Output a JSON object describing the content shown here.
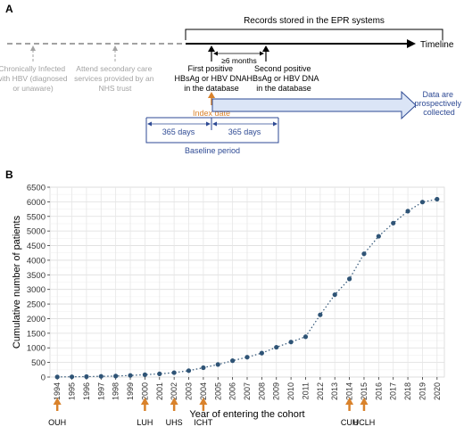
{
  "panel_a": {
    "label": "A",
    "records_label": "Records stored in the EPR systems",
    "timeline_label": "Timeline",
    "gap_label": "≥6 months",
    "chronic_text": [
      "Chronically Infected",
      "with HBV (diagnosed",
      "or unaware)"
    ],
    "attend_text": [
      "Attend secondary care",
      "services provided by an",
      "NHS trust"
    ],
    "first_positive_text": [
      "First positive",
      "HBsAg or HBV DNA",
      "in the database"
    ],
    "second_positive_text": [
      "Second positive",
      "HBsAg or HBV DNA",
      "in the database"
    ],
    "index_date_label": "Index date",
    "prospective_text": [
      "Data are",
      "prospectively",
      "collected"
    ],
    "days_before_label": "365 days",
    "days_after_label": "365 days",
    "baseline_label": "Baseline period",
    "colors": {
      "grey": "#a3a3a3",
      "orange": "#d9822b",
      "blue": "#2e4a94",
      "arrow_fill": "#dbe5f6",
      "black": "#000000"
    }
  },
  "panel_b": {
    "label": "B",
    "trust_marker_color": "#d9822b",
    "trusts": [
      {
        "name": "OUH",
        "year": 1994
      },
      {
        "name": "LUH",
        "year": 2000
      },
      {
        "name": "UHS",
        "year": 2002
      },
      {
        "name": "ICHT",
        "year": 2004
      },
      {
        "name": "CUH",
        "year": 2014
      },
      {
        "name": "UCLH",
        "year": 2015
      }
    ]
  },
  "chart_data": {
    "type": "line",
    "title": "",
    "xlabel": "Year of entering the cohort",
    "ylabel": "Cumulative number of patients",
    "x": [
      1994,
      1995,
      1996,
      1997,
      1998,
      1999,
      2000,
      2001,
      2002,
      2003,
      2004,
      2005,
      2006,
      2007,
      2008,
      2009,
      2010,
      2011,
      2012,
      2013,
      2014,
      2015,
      2016,
      2017,
      2018,
      2019,
      2020
    ],
    "series": [
      {
        "values": [
          5,
          10,
          15,
          25,
          35,
          55,
          80,
          110,
          150,
          220,
          320,
          430,
          560,
          680,
          820,
          1020,
          1200,
          1380,
          2130,
          2820,
          3360,
          4220,
          4820,
          5270,
          5680,
          5990,
          6090
        ]
      }
    ],
    "ylim": [
      0,
      6500
    ],
    "yticks": [
      0,
      500,
      1000,
      1500,
      2000,
      2500,
      3000,
      3500,
      4000,
      4500,
      5000,
      5500,
      6000,
      6500
    ],
    "grid": true,
    "line_style": "dotted",
    "color": "#2f5476"
  }
}
